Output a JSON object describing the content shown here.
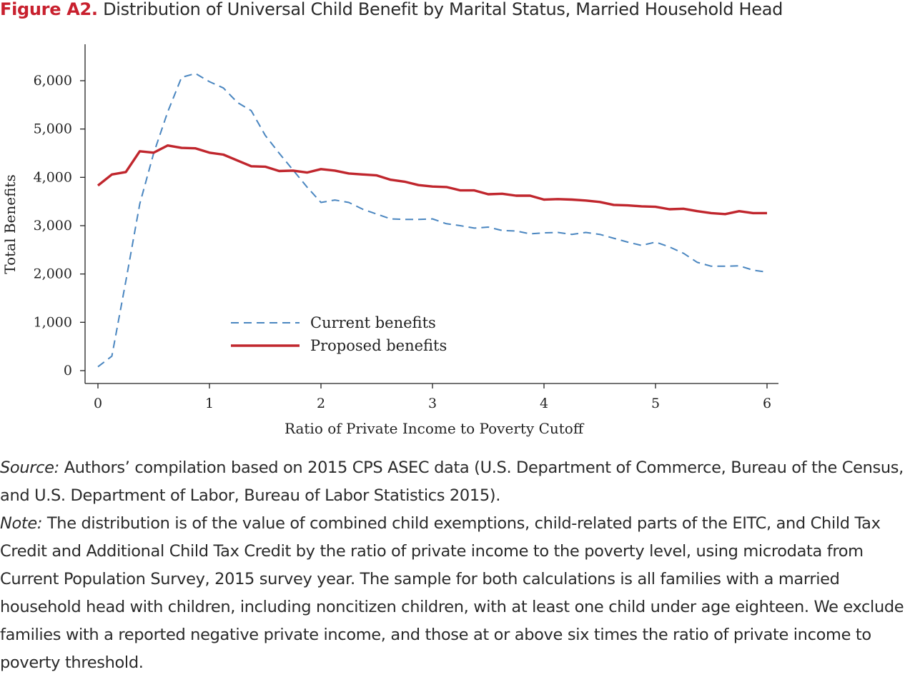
{
  "figure": {
    "label": "Figure A2.",
    "title": "Distribution of Universal Child Benefit by Marital Status, Married Household Head"
  },
  "chart_data": {
    "type": "line",
    "xlabel": "Ratio of Private Income to Poverty Cutoff",
    "ylabel": "Total Benefits",
    "xlim": [
      0,
      6
    ],
    "ylim": [
      0,
      6500
    ],
    "xticks": [
      0,
      1,
      2,
      3,
      4,
      5,
      6
    ],
    "yticks": [
      0,
      1000,
      2000,
      3000,
      4000,
      5000,
      6000
    ],
    "xtick_labels": [
      "0",
      "1",
      "2",
      "3",
      "4",
      "5",
      "6"
    ],
    "ytick_labels": [
      "0",
      "1,000",
      "2,000",
      "3,000",
      "4,000",
      "5,000",
      "6,000"
    ],
    "grid": false,
    "legend_position": "center-left-lower",
    "series": [
      {
        "name": "Current benefits",
        "color": "#4a86c0",
        "style": "dashed",
        "points": [
          [
            0.0,
            80
          ],
          [
            0.125,
            300
          ],
          [
            0.25,
            1850
          ],
          [
            0.375,
            3450
          ],
          [
            0.5,
            4500
          ],
          [
            0.625,
            5350
          ],
          [
            0.75,
            6070
          ],
          [
            0.875,
            6150
          ],
          [
            1.0,
            5980
          ],
          [
            1.125,
            5850
          ],
          [
            1.25,
            5550
          ],
          [
            1.375,
            5380
          ],
          [
            1.5,
            4870
          ],
          [
            1.625,
            4500
          ],
          [
            1.75,
            4150
          ],
          [
            1.875,
            3800
          ],
          [
            2.0,
            3480
          ],
          [
            2.125,
            3530
          ],
          [
            2.25,
            3480
          ],
          [
            2.375,
            3340
          ],
          [
            2.5,
            3240
          ],
          [
            2.625,
            3140
          ],
          [
            2.75,
            3130
          ],
          [
            2.875,
            3130
          ],
          [
            3.0,
            3140
          ],
          [
            3.125,
            3040
          ],
          [
            3.25,
            3000
          ],
          [
            3.375,
            2950
          ],
          [
            3.5,
            2970
          ],
          [
            3.625,
            2900
          ],
          [
            3.75,
            2890
          ],
          [
            3.875,
            2830
          ],
          [
            4.0,
            2850
          ],
          [
            4.125,
            2860
          ],
          [
            4.25,
            2820
          ],
          [
            4.375,
            2860
          ],
          [
            4.5,
            2820
          ],
          [
            4.625,
            2740
          ],
          [
            4.75,
            2660
          ],
          [
            4.875,
            2590
          ],
          [
            5.0,
            2660
          ],
          [
            5.125,
            2560
          ],
          [
            5.25,
            2430
          ],
          [
            5.375,
            2240
          ],
          [
            5.5,
            2160
          ],
          [
            5.625,
            2160
          ],
          [
            5.75,
            2170
          ],
          [
            5.875,
            2080
          ],
          [
            6.0,
            2040
          ]
        ]
      },
      {
        "name": "Proposed benefits",
        "color": "#c0262d",
        "style": "solid",
        "points": [
          [
            0.0,
            3830
          ],
          [
            0.125,
            4060
          ],
          [
            0.25,
            4110
          ],
          [
            0.375,
            4540
          ],
          [
            0.5,
            4510
          ],
          [
            0.625,
            4660
          ],
          [
            0.75,
            4610
          ],
          [
            0.875,
            4600
          ],
          [
            1.0,
            4510
          ],
          [
            1.125,
            4470
          ],
          [
            1.25,
            4350
          ],
          [
            1.375,
            4230
          ],
          [
            1.5,
            4220
          ],
          [
            1.625,
            4130
          ],
          [
            1.75,
            4140
          ],
          [
            1.875,
            4100
          ],
          [
            2.0,
            4170
          ],
          [
            2.125,
            4140
          ],
          [
            2.25,
            4080
          ],
          [
            2.375,
            4060
          ],
          [
            2.5,
            4040
          ],
          [
            2.625,
            3950
          ],
          [
            2.75,
            3910
          ],
          [
            2.875,
            3840
          ],
          [
            3.0,
            3810
          ],
          [
            3.125,
            3800
          ],
          [
            3.25,
            3730
          ],
          [
            3.375,
            3730
          ],
          [
            3.5,
            3650
          ],
          [
            3.625,
            3660
          ],
          [
            3.75,
            3620
          ],
          [
            3.875,
            3620
          ],
          [
            4.0,
            3540
          ],
          [
            4.125,
            3550
          ],
          [
            4.25,
            3540
          ],
          [
            4.375,
            3520
          ],
          [
            4.5,
            3490
          ],
          [
            4.625,
            3430
          ],
          [
            4.75,
            3420
          ],
          [
            4.875,
            3400
          ],
          [
            5.0,
            3390
          ],
          [
            5.125,
            3340
          ],
          [
            5.25,
            3350
          ],
          [
            5.375,
            3300
          ],
          [
            5.5,
            3260
          ],
          [
            5.625,
            3240
          ],
          [
            5.75,
            3300
          ],
          [
            5.875,
            3260
          ],
          [
            6.0,
            3260
          ]
        ]
      }
    ]
  },
  "notes": {
    "source_label": "Source:",
    "source_text": " Authors’ compilation based on 2015 CPS ASEC data (U.S. Department of Commerce, Bureau of the Census, and U.S. Department of Labor, Bureau of Labor Statistics 2015).",
    "note_label": "Note:",
    "note_text": " The distribution is of the value of combined child exemptions, child-related parts of the EITC, and Child Tax Credit and Additional Child Tax Credit by the ratio of private income to the poverty level, using microdata from Current Population Survey, 2015 survey year. The sample for both calculations is all families with a married household head with children, including noncitizen children, with at least one child under age eighteen. We exclude families with a reported negative private income, and those at or above six times the ratio of private income to poverty threshold."
  }
}
